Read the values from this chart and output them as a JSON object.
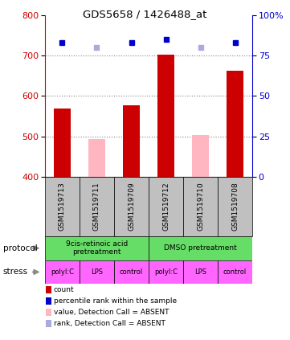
{
  "title": "GDS5658 / 1426488_at",
  "samples": [
    "GSM1519713",
    "GSM1519711",
    "GSM1519709",
    "GSM1519712",
    "GSM1519710",
    "GSM1519708"
  ],
  "bar_values": [
    570,
    493,
    577,
    703,
    503,
    662
  ],
  "bar_absent": [
    false,
    true,
    false,
    false,
    true,
    false
  ],
  "rank_values": [
    83,
    80,
    83,
    85,
    80,
    83
  ],
  "rank_absent": [
    false,
    true,
    false,
    false,
    true,
    false
  ],
  "ylim_left": [
    400,
    800
  ],
  "ylim_right": [
    0,
    100
  ],
  "yticks_left": [
    400,
    500,
    600,
    700,
    800
  ],
  "yticks_right": [
    0,
    25,
    50,
    75,
    100
  ],
  "stress_labels": [
    "polyI:C",
    "LPS",
    "control",
    "polyI:C",
    "LPS",
    "control"
  ],
  "stress_color": "#FF66FF",
  "protocol_label_1": "9cis-retinoic acid\npretreatment",
  "protocol_label_2": "DMSO pretreatment",
  "protocol_color": "#66DD66",
  "bar_color_present": "#CC0000",
  "bar_color_absent": "#FFB6C1",
  "rank_color_present": "#0000CC",
  "rank_color_absent": "#AAAADD",
  "grid_color": "#888888",
  "sample_box_color": "#C0C0C0",
  "left_axis_color": "#CC0000",
  "right_axis_color": "#0000CC",
  "bar_width": 0.5,
  "rank_marker_size": 5,
  "legend_items": [
    {
      "color": "#CC0000",
      "label": "count"
    },
    {
      "color": "#0000CC",
      "label": "percentile rank within the sample"
    },
    {
      "color": "#FFB6C1",
      "label": "value, Detection Call = ABSENT"
    },
    {
      "color": "#AAAADD",
      "label": "rank, Detection Call = ABSENT"
    }
  ]
}
